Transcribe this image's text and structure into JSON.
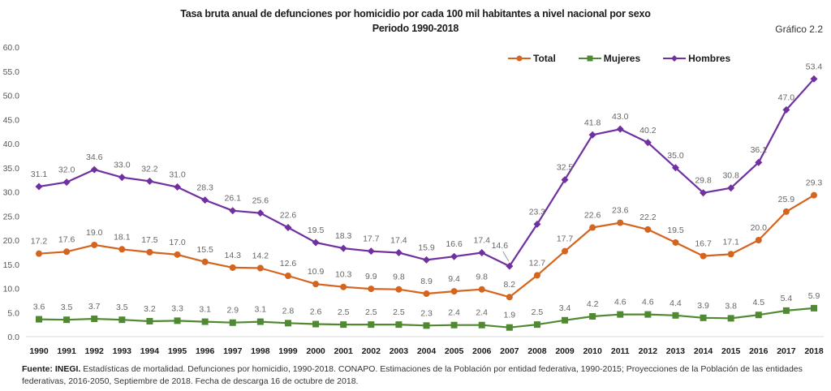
{
  "header": {
    "title_line1": "Tasa bruta anual de defunciones por homicidio por cada 100 mil habitantes a nivel nacional por sexo",
    "title_line2": "Periodo 1990-2018",
    "figure_number": "Gráfico 2.2"
  },
  "footer": {
    "source_label": "Fuente: INEGI.",
    "source_text": " Estadísticas de mortalidad. Defunciones por homicidio, 1990-2018. CONAPO. Estimaciones de la Población por entidad federativa, 1990-2015; Proyecciones de la Población de las entidades federativas, 2016-2050, Septiembre de 2018. Fecha de descarga 16 de octubre de 2018."
  },
  "chart_data": {
    "type": "line",
    "title": "Tasa bruta anual de defunciones por homicidio por cada 100 mil habitantes a nivel nacional por sexo",
    "subtitle": "Periodo 1990-2018",
    "xlabel": "",
    "ylabel": "",
    "ylim": [
      0,
      60
    ],
    "yticks": [
      "0.0",
      "5.0",
      "10.0",
      "15.0",
      "20.0",
      "25.0",
      "30.0",
      "35.0",
      "40.0",
      "45.0",
      "50.0",
      "55.0",
      "60.0"
    ],
    "grid": false,
    "legend": "top-right",
    "x": [
      "1990",
      "1991",
      "1992",
      "1993",
      "1994",
      "1995",
      "1996",
      "1997",
      "1998",
      "1999",
      "2000",
      "2001",
      "2002",
      "2003",
      "2004",
      "2005",
      "2006",
      "2007",
      "2008",
      "2009",
      "2010",
      "2011",
      "2012",
      "2013",
      "2014",
      "2015",
      "2016",
      "2017",
      "2018"
    ],
    "series": [
      {
        "name": "Total",
        "color": "#d4641e",
        "marker": "circle",
        "values": [
          17.2,
          17.6,
          19.0,
          18.1,
          17.5,
          17.0,
          15.5,
          14.3,
          14.2,
          12.6,
          10.9,
          10.3,
          9.9,
          9.8,
          8.9,
          9.4,
          9.8,
          8.2,
          12.7,
          17.7,
          22.6,
          23.6,
          22.2,
          19.5,
          16.7,
          17.1,
          20.0,
          25.9,
          29.3
        ]
      },
      {
        "name": "Mujeres",
        "color": "#4f8a32",
        "marker": "square",
        "values": [
          3.6,
          3.5,
          3.7,
          3.5,
          3.2,
          3.3,
          3.1,
          2.9,
          3.1,
          2.8,
          2.6,
          2.5,
          2.5,
          2.5,
          2.3,
          2.4,
          2.4,
          1.9,
          2.5,
          3.4,
          4.2,
          4.6,
          4.6,
          4.4,
          3.9,
          3.8,
          4.5,
          5.4,
          5.9
        ]
      },
      {
        "name": "Hombres",
        "color": "#7030a0",
        "marker": "diamond",
        "values": [
          31.1,
          32.0,
          34.6,
          33.0,
          32.2,
          31.0,
          28.3,
          26.1,
          25.6,
          22.6,
          19.5,
          18.3,
          17.7,
          17.4,
          15.9,
          16.6,
          17.4,
          14.6,
          23.3,
          32.5,
          41.8,
          43.0,
          40.2,
          35.0,
          29.8,
          30.8,
          36.1,
          47.0,
          53.4
        ]
      }
    ]
  }
}
